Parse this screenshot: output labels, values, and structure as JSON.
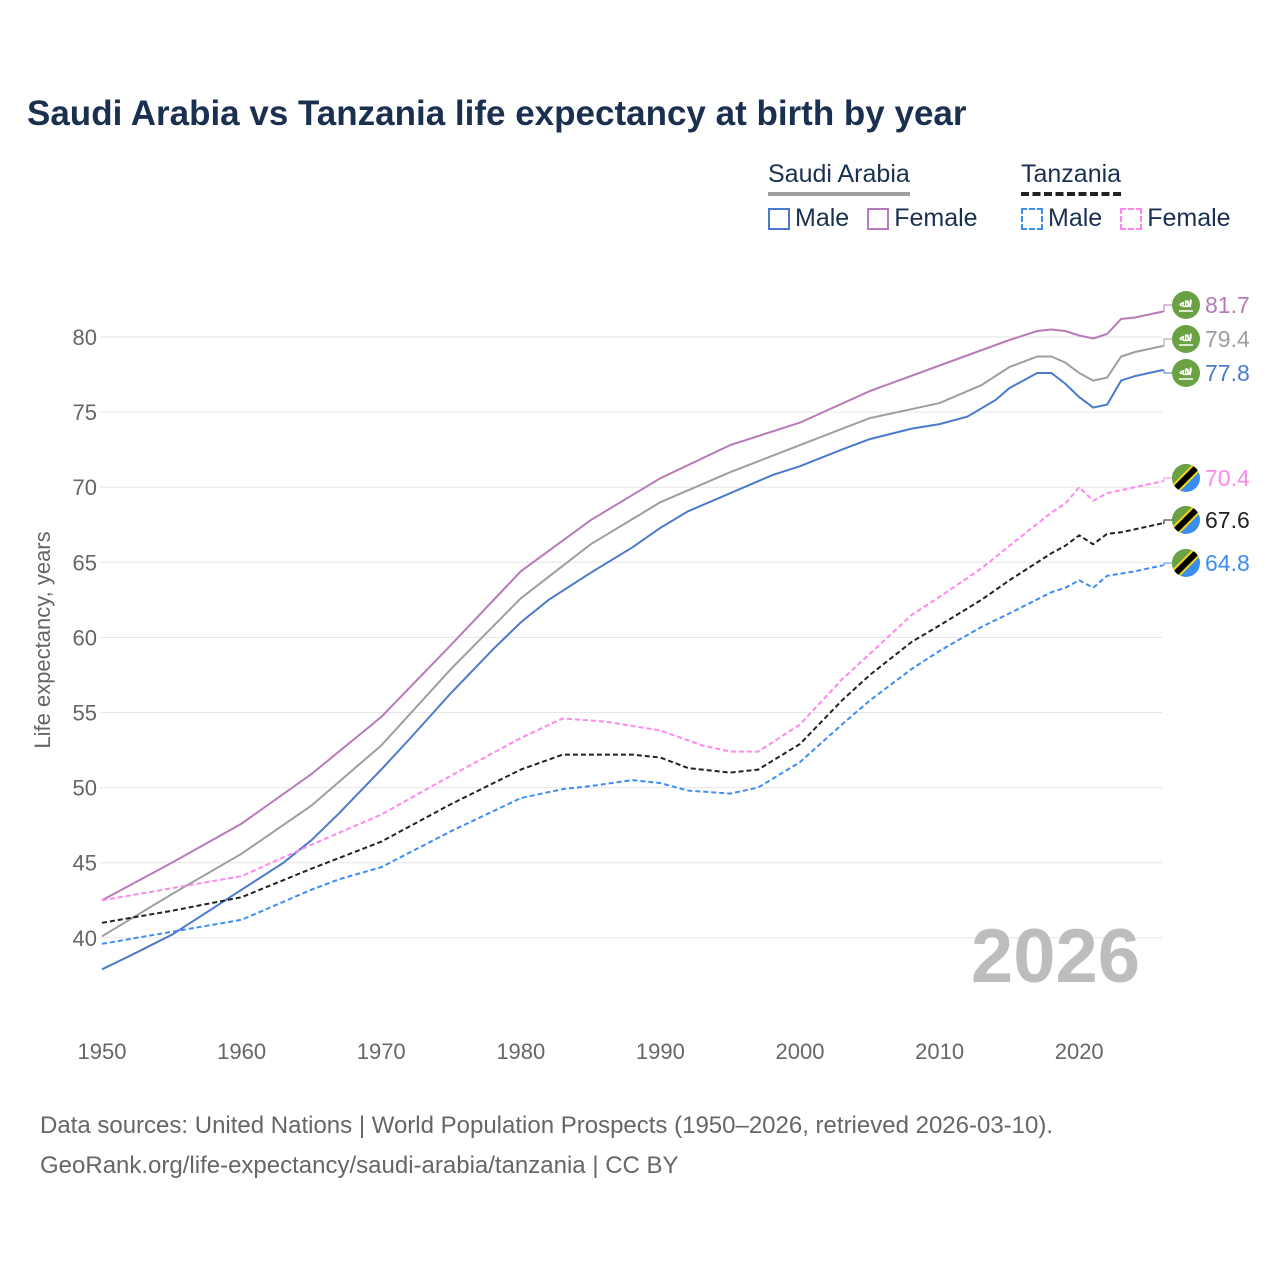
{
  "chart_data": {
    "type": "line",
    "title": "Saudi Arabia vs Tanzania life expectancy at birth by year",
    "xlabel": "",
    "ylabel": "Life expectancy, years",
    "xlim": [
      1950,
      2026
    ],
    "ylim": [
      35,
      83
    ],
    "x_ticks": [
      "1950",
      "1960",
      "1970",
      "1980",
      "1990",
      "2000",
      "2010",
      "2020"
    ],
    "y_ticks": [
      "40",
      "45",
      "50",
      "55",
      "60",
      "65",
      "70",
      "75",
      "80"
    ],
    "grid": true,
    "current_year": "2026",
    "legend": {
      "placement": "top-right",
      "groups": [
        {
          "name": "Saudi Arabia",
          "style": "solid",
          "color": "#9e9e9e",
          "items": [
            {
              "label": "Male",
              "color": "#4a7acb"
            },
            {
              "label": "Female",
              "color": "#b87ab8"
            }
          ]
        },
        {
          "name": "Tanzania",
          "style": "dashed",
          "color": "#222222",
          "items": [
            {
              "label": "Male",
              "color": "#3d8df5"
            },
            {
              "label": "Female",
              "color": "#ff88ee"
            }
          ]
        }
      ]
    },
    "series": [
      {
        "name": "Saudi Arabia Female",
        "color": "#b87ab8",
        "dashed": false,
        "end_label": "81.7",
        "flag": "saudi-arabia",
        "x": [
          1950,
          1955,
          1960,
          1965,
          1970,
          1975,
          1980,
          1985,
          1990,
          1995,
          2000,
          2005,
          2010,
          2015,
          2017,
          2018,
          2019,
          2020,
          2021,
          2022,
          2023,
          2024,
          2025,
          2026
        ],
        "y": [
          42.5,
          45.0,
          47.6,
          50.9,
          54.7,
          59.5,
          64.4,
          67.8,
          70.6,
          72.8,
          74.3,
          76.4,
          78.1,
          79.8,
          80.4,
          80.5,
          80.4,
          80.1,
          79.9,
          80.2,
          81.2,
          81.3,
          81.5,
          81.7
        ]
      },
      {
        "name": "Saudi Arabia Total",
        "color": "#9e9e9e",
        "dashed": false,
        "end_label": "79.4",
        "flag": "saudi-arabia",
        "x": [
          1950,
          1955,
          1960,
          1965,
          1970,
          1975,
          1980,
          1985,
          1990,
          1995,
          2000,
          2005,
          2010,
          2013,
          2015,
          2017,
          2018,
          2019,
          2020,
          2021,
          2022,
          2023,
          2024,
          2026
        ],
        "y": [
          40.1,
          42.9,
          45.6,
          48.8,
          52.8,
          57.9,
          62.6,
          66.2,
          69.0,
          71.0,
          72.8,
          74.6,
          75.6,
          76.8,
          78.0,
          78.7,
          78.7,
          78.3,
          77.6,
          77.1,
          77.3,
          78.7,
          79.0,
          79.4
        ]
      },
      {
        "name": "Saudi Arabia Male",
        "color": "#4a7acb",
        "dashed": false,
        "end_label": "77.8",
        "flag": "saudi-arabia",
        "x": [
          1950,
          1952,
          1955,
          1958,
          1960,
          1963,
          1965,
          1967,
          1970,
          1972,
          1975,
          1978,
          1980,
          1982,
          1985,
          1988,
          1990,
          1992,
          1995,
          1998,
          2000,
          2003,
          2005,
          2008,
          2010,
          2012,
          2014,
          2015,
          2017,
          2018,
          2019,
          2020,
          2021,
          2022,
          2023,
          2024,
          2025,
          2026
        ],
        "y": [
          37.9,
          38.8,
          40.2,
          42.0,
          43.2,
          45.0,
          46.5,
          48.3,
          51.2,
          53.2,
          56.3,
          59.2,
          61.0,
          62.5,
          64.3,
          66.0,
          67.3,
          68.4,
          69.6,
          70.8,
          71.4,
          72.5,
          73.2,
          73.9,
          74.2,
          74.7,
          75.8,
          76.6,
          77.6,
          77.6,
          76.9,
          76.0,
          75.3,
          75.5,
          77.1,
          77.4,
          77.6,
          77.8
        ]
      },
      {
        "name": "Tanzania Female",
        "color": "#ff88ee",
        "dashed": true,
        "end_label": "70.4",
        "flag": "tanzania",
        "x": [
          1950,
          1955,
          1960,
          1965,
          1970,
          1975,
          1980,
          1983,
          1986,
          1990,
          1993,
          1995,
          1997,
          2000,
          2003,
          2005,
          2008,
          2010,
          2013,
          2015,
          2018,
          2019,
          2020,
          2021,
          2022,
          2024,
          2026
        ],
        "y": [
          42.5,
          43.3,
          44.1,
          46.2,
          48.2,
          50.8,
          53.3,
          54.6,
          54.4,
          53.8,
          52.8,
          52.4,
          52.4,
          54.2,
          57.2,
          58.9,
          61.5,
          62.7,
          64.6,
          66.1,
          68.3,
          68.9,
          70.0,
          69.1,
          69.6,
          70.0,
          70.4
        ]
      },
      {
        "name": "Tanzania Total",
        "color": "#222222",
        "dashed": true,
        "end_label": "67.6",
        "flag": "tanzania",
        "x": [
          1950,
          1955,
          1960,
          1965,
          1970,
          1975,
          1980,
          1983,
          1988,
          1990,
          1992,
          1995,
          1997,
          2000,
          2003,
          2005,
          2008,
          2010,
          2013,
          2015,
          2018,
          2019,
          2020,
          2021,
          2022,
          2023,
          2026
        ],
        "y": [
          41.0,
          41.8,
          42.7,
          44.6,
          46.4,
          48.9,
          51.2,
          52.2,
          52.2,
          52.0,
          51.3,
          51.0,
          51.2,
          52.9,
          55.8,
          57.5,
          59.7,
          60.8,
          62.5,
          63.8,
          65.6,
          66.1,
          66.8,
          66.2,
          66.9,
          67.0,
          67.6
        ]
      },
      {
        "name": "Tanzania Male",
        "color": "#3d8df5",
        "dashed": true,
        "end_label": "64.8",
        "flag": "tanzania",
        "x": [
          1950,
          1955,
          1960,
          1965,
          1967,
          1970,
          1975,
          1980,
          1983,
          1985,
          1988,
          1990,
          1992,
          1995,
          1997,
          2000,
          2003,
          2005,
          2008,
          2010,
          2013,
          2015,
          2018,
          2019,
          2020,
          2021,
          2022,
          2024,
          2026
        ],
        "y": [
          39.6,
          40.4,
          41.2,
          43.2,
          43.9,
          44.7,
          47.1,
          49.3,
          49.9,
          50.1,
          50.5,
          50.3,
          49.8,
          49.6,
          50.0,
          51.7,
          54.2,
          55.8,
          57.9,
          59.1,
          60.7,
          61.6,
          63.0,
          63.3,
          63.8,
          63.3,
          64.1,
          64.4,
          64.8
        ]
      }
    ]
  },
  "footer": {
    "line1": "Data sources: United Nations | World Population Prospects (1950–2026, retrieved 2026-03-10).",
    "line2": "GeoRank.org/life-expectancy/saudi-arabia/tanzania | CC BY"
  }
}
